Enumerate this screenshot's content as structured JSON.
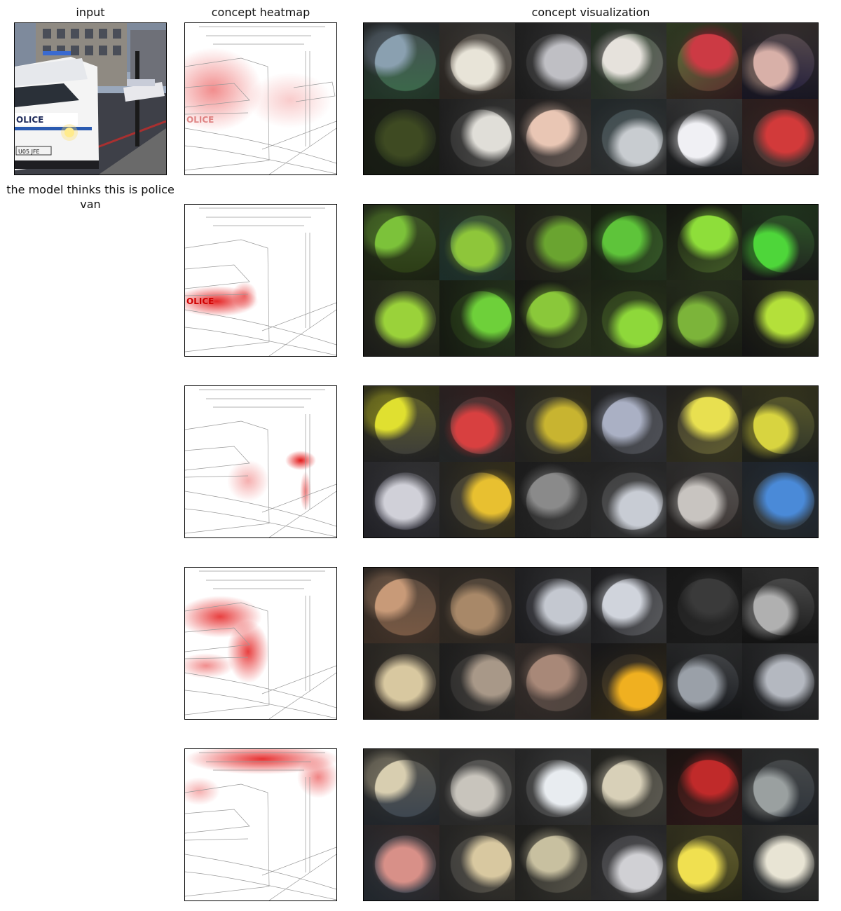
{
  "column_titles": {
    "input": "input",
    "heatmap": "concept heatmap",
    "visualization": "concept visualization"
  },
  "input_image": {
    "van_text": "OLICE",
    "plate_text": "U05 JFE"
  },
  "prediction_text": "the model thinks this is police van",
  "heatmap_texts": {
    "police": "OLICE"
  },
  "colors": {
    "heat_red": "#e00000",
    "panel_border": "#000000"
  },
  "concepts": [
    {
      "tiles": [
        [
          "#3b6b4a",
          "#8aa0b0"
        ],
        [
          "#4d4035",
          "#e8e4d8"
        ],
        [
          "#2a2a2a",
          "#bfbfc4"
        ],
        [
          "#3c5a3a",
          "#e6e2dc"
        ],
        [
          "#5a7a3a",
          "#cc3a44"
        ],
        [
          "#1e1a3a",
          "#d8b0a8"
        ],
        [
          "#1e2a14",
          "#3e4a22"
        ],
        [
          "#2b2b2b",
          "#e0ded8"
        ],
        [
          "#3a3434",
          "#e9c6b4"
        ],
        [
          "#3a4a4e",
          "#c8ccd0"
        ],
        [
          "#202428",
          "#f0f0f4"
        ],
        [
          "#4a3a36",
          "#d23a3a"
        ]
      ]
    },
    {
      "tiles": [
        [
          "#2a3a14",
          "#7cc23a"
        ],
        [
          "#2c5a50",
          "#8ec63a"
        ],
        [
          "#2a2620",
          "#6aa430"
        ],
        [
          "#1e2e10",
          "#5ec43a"
        ],
        [
          "#161a10",
          "#8ede3a"
        ],
        [
          "#1e1e1e",
          "#4ed63a"
        ],
        [
          "#2a2a24",
          "#9ad23a"
        ],
        [
          "#1a2410",
          "#6ed03a"
        ],
        [
          "#1a1a14",
          "#8ac83a"
        ],
        [
          "#2a3a1a",
          "#8ed83a"
        ],
        [
          "#1e2414",
          "#7cb43a"
        ],
        [
          "#141414",
          "#b4e03a"
        ]
      ]
    },
    {
      "tiles": [
        [
          "#3a3a3a",
          "#e0e030"
        ],
        [
          "#3a4444",
          "#d84040"
        ],
        [
          "#3a3a36",
          "#c8b430"
        ],
        [
          "#3a3c40",
          "#aab0c4"
        ],
        [
          "#3a3630",
          "#e8e050"
        ],
        [
          "#2a3028",
          "#d8d440"
        ],
        [
          "#3a3a48",
          "#d0d0d8"
        ],
        [
          "#3a3a3a",
          "#e8c030"
        ],
        [
          "#2a2a2a",
          "#8a8a8a"
        ],
        [
          "#3a3a3a",
          "#c8ccd4"
        ],
        [
          "#3a3230",
          "#c8c4c0"
        ],
        [
          "#3a4042",
          "#4a8ad8"
        ]
      ]
    },
    {
      "tiles": [
        [
          "#7a5a44",
          "#c89a78"
        ],
        [
          "#5a4a3a",
          "#a88868"
        ],
        [
          "#2a2a30",
          "#c4c8d0"
        ],
        [
          "#2a2a30",
          "#d0d4dc"
        ],
        [
          "#1e1e1e",
          "#3a3a3a"
        ],
        [
          "#141414",
          "#b0b0b0"
        ],
        [
          "#3a3028",
          "#d8c8a0"
        ],
        [
          "#2a2a2a",
          "#a89888"
        ],
        [
          "#5a4a44",
          "#a88878"
        ],
        [
          "#1e1e24",
          "#f0b020"
        ],
        [
          "#0e1014",
          "#9aa0a8"
        ],
        [
          "#1e2024",
          "#b4b8c0"
        ]
      ]
    },
    {
      "tiles": [
        [
          "#3a4450",
          "#d8ceb0"
        ],
        [
          "#4a4a4a",
          "#c8c4bc"
        ],
        [
          "#3a3a3a",
          "#e8ecf0"
        ],
        [
          "#3a3a30",
          "#d8d0b8"
        ],
        [
          "#2a1410",
          "#c02a2a"
        ],
        [
          "#2a3038",
          "#9aa0a0"
        ],
        [
          "#3a4a5a",
          "#d89088"
        ],
        [
          "#3a3a3a",
          "#d8c8a0"
        ],
        [
          "#2e2e2a",
          "#c8c0a0"
        ],
        [
          "#3a3a3e",
          "#d0d0d4"
        ],
        [
          "#3a3a1a",
          "#f0e050"
        ],
        [
          "#2a2e30",
          "#e8e4d4"
        ]
      ]
    }
  ]
}
